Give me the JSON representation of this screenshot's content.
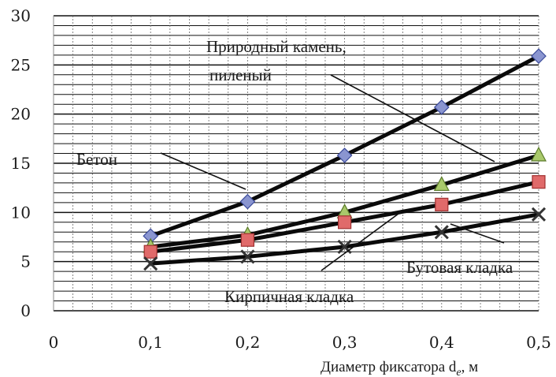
{
  "chart_data": {
    "type": "line",
    "x": [
      0.1,
      0.2,
      0.3,
      0.4,
      0.5
    ],
    "x_tick_labels": [
      "0",
      "0,1",
      "0,2",
      "0,3",
      "0,4",
      "0,5"
    ],
    "y_tick_labels": [
      "0",
      "5",
      "10",
      "15",
      "20",
      "25",
      "30"
    ],
    "xlim": [
      0,
      0.5
    ],
    "ylim": [
      0,
      30
    ],
    "grid": true,
    "xlabel": "Диаметр фиксатора d",
    "xlabel_sub": "e",
    "xlabel_unit": ", м",
    "series": [
      {
        "name": "Бетон",
        "values": [
          7.6,
          11.1,
          15.8,
          20.7,
          25.9
        ],
        "marker": "diamond",
        "marker_color": "#8a95d0"
      },
      {
        "name": "Природный камень, пиленый",
        "values": [
          6.5,
          7.7,
          10.0,
          12.8,
          15.8
        ],
        "marker": "triangle",
        "marker_color": "#a9c96b"
      },
      {
        "name": "Бутовая кладка",
        "values": [
          6.0,
          7.2,
          9.0,
          10.8,
          13.1
        ],
        "marker": "square",
        "marker_color": "#e06a6a"
      },
      {
        "name": "Кирпичная кладка",
        "values": [
          4.8,
          5.5,
          6.5,
          8.0,
          9.8
        ],
        "marker": "cross",
        "marker_color": "#333333"
      }
    ],
    "annotations": {
      "stone_line1": "Природный камень,",
      "stone_line2": "пиленый",
      "concrete": "Бетон",
      "rubble": "Бутовая кладка",
      "brick": "Кирпичная кладка"
    }
  }
}
